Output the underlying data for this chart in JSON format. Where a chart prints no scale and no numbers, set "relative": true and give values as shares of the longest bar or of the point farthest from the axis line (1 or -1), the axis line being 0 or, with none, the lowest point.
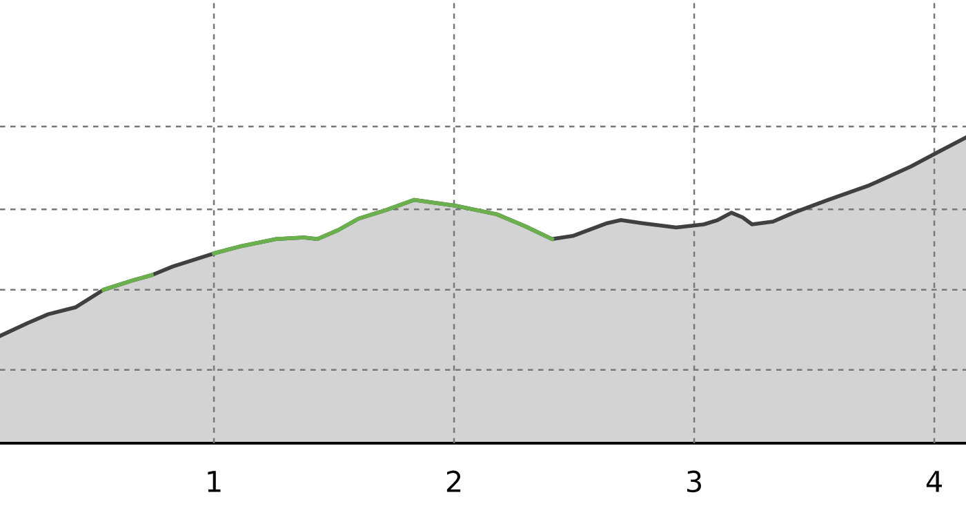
{
  "chart_data": {
    "type": "area",
    "relative": true,
    "grid": true,
    "tick_labels": "x",
    "xlim": [
      0.109,
      4.132
    ],
    "xticks": [
      1,
      2,
      3,
      4
    ],
    "series": [
      {
        "color": "#404040",
        "x": [
          0.109,
          0.224,
          0.31,
          0.425,
          0.54,
          0.655,
          0.741,
          0.828,
          1.0,
          1.115,
          1.259,
          1.374,
          1.431,
          1.517,
          1.603,
          1.718,
          1.833,
          2.006,
          2.178,
          2.293,
          2.408,
          2.494,
          2.638,
          2.695,
          2.782,
          2.925,
          3.04,
          3.098,
          3.155,
          3.201,
          3.241,
          3.328,
          3.414,
          3.557,
          3.73,
          3.902,
          4.017,
          4.132
        ],
        "values": [
          0.351,
          0.393,
          0.422,
          0.445,
          0.502,
          0.531,
          0.55,
          0.578,
          0.621,
          0.645,
          0.668,
          0.673,
          0.668,
          0.697,
          0.735,
          0.763,
          0.796,
          0.777,
          0.749,
          0.711,
          0.668,
          0.678,
          0.72,
          0.73,
          0.72,
          0.706,
          0.716,
          0.73,
          0.754,
          0.739,
          0.716,
          0.725,
          0.754,
          0.796,
          0.844,
          0.905,
          0.953,
          1.0
        ],
        "colors": [
          "#404040",
          "#404040",
          "#404040",
          "#404040",
          "#6ab04c",
          "#6ab04c",
          "#6ab04c",
          "#404040",
          "#6ab04c",
          "#6ab04c",
          "#6ab04c",
          "#6ab04c",
          "#6ab04c",
          "#6ab04c",
          "#6ab04c",
          "#6ab04c",
          "#6ab04c",
          "#6ab04c",
          "#6ab04c",
          "#6ab04c",
          "#6ab04c",
          "#404040",
          "#404040",
          "#404040",
          "#404040",
          "#404040",
          "#404040",
          "#404040",
          "#404040",
          "#404040",
          "#404040",
          "#404040",
          "#404040",
          "#404040",
          "#404040",
          "#404040",
          "#404040",
          "#404040"
        ]
      }
    ]
  }
}
